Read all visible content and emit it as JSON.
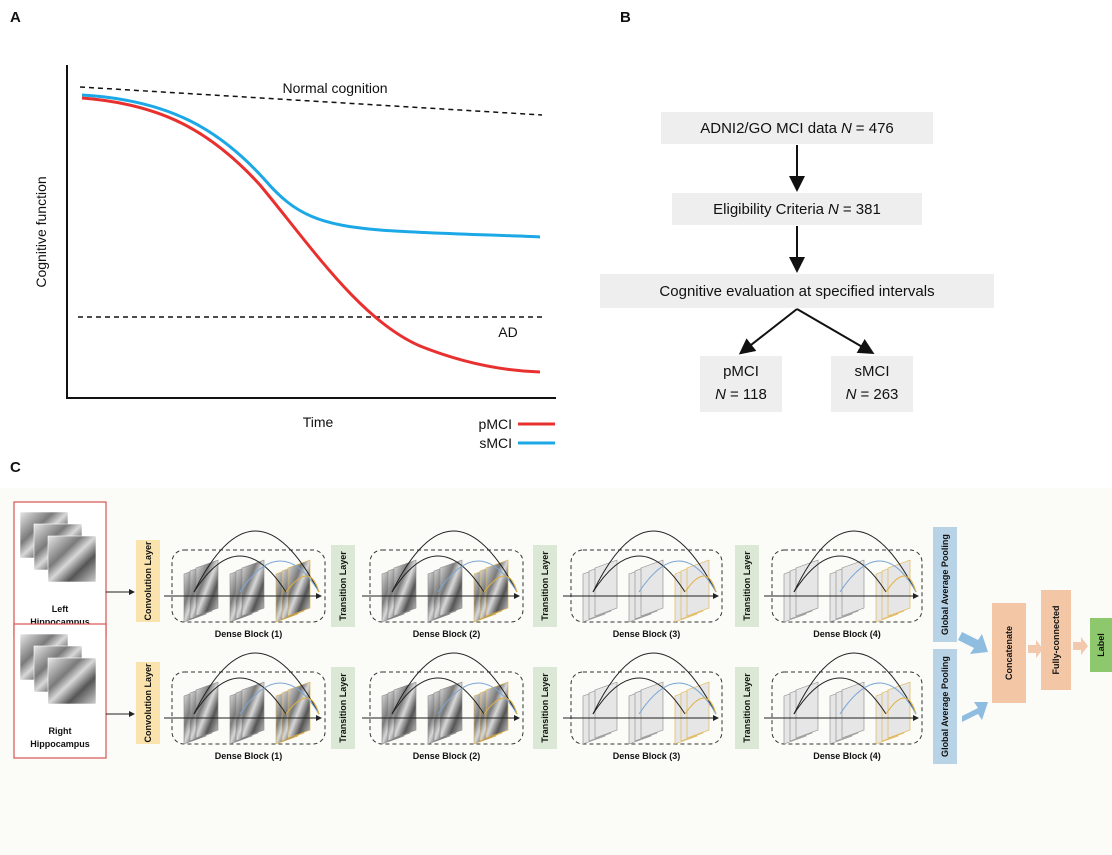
{
  "panel_a": {
    "label": "A",
    "y_axis": "Cognitive function",
    "x_axis": "Time",
    "reference_lines": [
      "Normal cognition",
      "AD"
    ],
    "legend": [
      {
        "name": "pMCI",
        "color": "#e8302f"
      },
      {
        "name": "sMCI",
        "color": "#1ca8e6"
      }
    ]
  },
  "panel_b": {
    "label": "B",
    "nodes": [
      {
        "text": "ADNI2/GO MCI data",
        "n_symbol": "N",
        "n_value": "= 476"
      },
      {
        "text": "Eligibility Criteria",
        "n_symbol": "N",
        "n_value": "= 381"
      },
      {
        "text": "Cognitive evaluation at specified intervals"
      },
      {
        "text": "pMCI",
        "n_symbol": "N",
        "n_value": "= 118"
      },
      {
        "text": "sMCI",
        "n_symbol": "N",
        "n_value": "= 263"
      }
    ]
  },
  "panel_c": {
    "label": "C",
    "rows": [
      {
        "input": [
          "Left",
          "Hippocampus"
        ],
        "convolution": "Convolution Layer",
        "blocks": [
          "Dense Block (1)",
          "Dense Block (2)",
          "Dense Block (3)",
          "Dense Block (4)"
        ],
        "transitions": [
          "Transition Layer",
          "Transition Layer",
          "Transition Layer"
        ],
        "pooling": "Global Average Pooling"
      },
      {
        "input": [
          "Right",
          "Hippocampus"
        ],
        "convolution": "Convolution Layer",
        "blocks": [
          "Dense Block (1)",
          "Dense Block (2)",
          "Dense Block (3)",
          "Dense Block (4)"
        ],
        "transitions": [
          "Transition Layer",
          "Transition Layer",
          "Transition Layer"
        ],
        "pooling": "Global Average Pooling"
      }
    ],
    "concatenate": "Concatenate",
    "fully_connected": "Fully-connected",
    "output": "Label"
  }
}
